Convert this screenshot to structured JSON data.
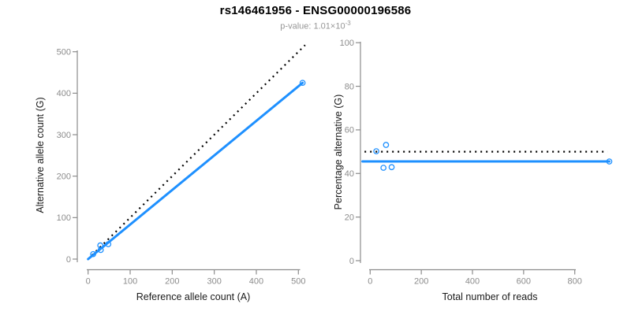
{
  "title": "rs146461956 - ENSG00000196586",
  "subtitle": {
    "text": "p-value: 1.01×10",
    "exponent": "-3"
  },
  "colors": {
    "accent": "#1E90FF",
    "identity": "#000000",
    "axis": "#8C8C8C",
    "tick_label": "#8C8C8C",
    "axis_title": "#1A1A1A",
    "title": "#000000",
    "subtitle": "#969696"
  },
  "chart_data": [
    {
      "type": "scatter",
      "panel": "allele-counts",
      "xlabel": "Reference allele count (A)",
      "ylabel": "Alternative allele count (G)",
      "xlim": [
        0,
        500
      ],
      "ylim": [
        0,
        500
      ],
      "xticks": [
        0,
        100,
        200,
        300,
        400,
        500
      ],
      "yticks": [
        0,
        100,
        200,
        300,
        400,
        500
      ],
      "grid": false,
      "points": [
        [
          12,
          12
        ],
        [
          29,
          33
        ],
        [
          30,
          22
        ],
        [
          48,
          36
        ],
        [
          510,
          425
        ]
      ],
      "lines": [
        {
          "name": "identity-line",
          "style": "dotted",
          "color": "#000000",
          "from": [
            0,
            0
          ],
          "to": [
            516,
            516
          ]
        },
        {
          "name": "fit-line",
          "style": "solid",
          "color": "#1E90FF",
          "from": [
            0,
            0
          ],
          "to": [
            510,
            425
          ]
        }
      ]
    },
    {
      "type": "scatter",
      "panel": "percentage-alternative",
      "xlabel": "Total number of reads",
      "ylabel": "Percentage alternative (G)",
      "xlim": [
        0,
        940
      ],
      "ylim": [
        0,
        100
      ],
      "xticks": [
        0,
        200,
        400,
        600,
        800
      ],
      "yticks": [
        0,
        20,
        40,
        60,
        80,
        100
      ],
      "grid": false,
      "points": [
        [
          24,
          50.2
        ],
        [
          62,
          53.1
        ],
        [
          52,
          42.6
        ],
        [
          84,
          42.9
        ],
        [
          935,
          45.5
        ]
      ],
      "lines": [
        {
          "name": "null-line",
          "style": "dotted",
          "color": "#000000",
          "from": [
            -22,
            50
          ],
          "to": [
            928,
            50
          ]
        },
        {
          "name": "fit-line",
          "style": "solid",
          "color": "#1E90FF",
          "from": [
            -30,
            45.5
          ],
          "to": [
            935,
            45.5
          ]
        }
      ]
    }
  ]
}
